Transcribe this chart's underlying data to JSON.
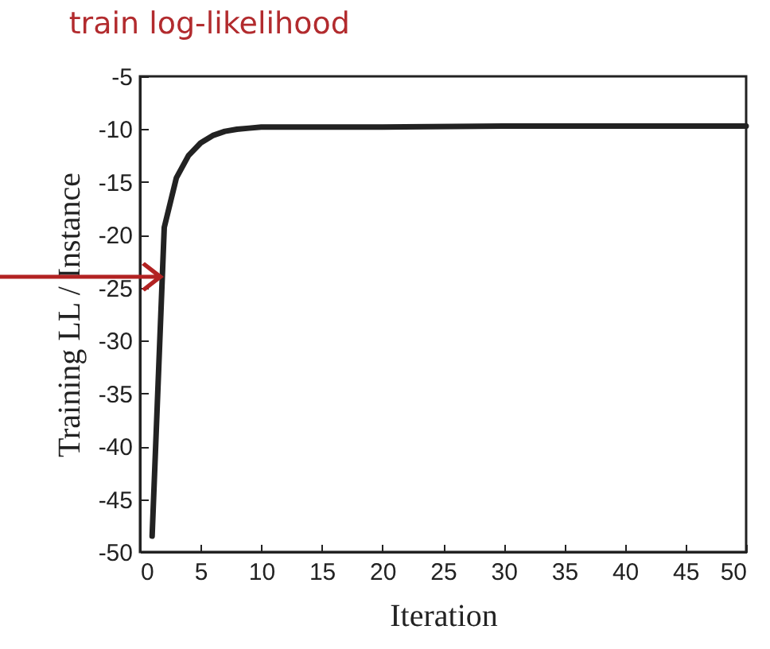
{
  "chart_data": {
    "type": "line",
    "title": "train log-likelihood",
    "xlabel": "Iteration",
    "ylabel": "Training LL / Instance",
    "x": [
      1,
      2,
      3,
      4,
      5,
      6,
      7,
      8,
      9,
      10,
      12,
      15,
      20,
      30,
      40,
      50
    ],
    "series": [
      {
        "color": "#222222",
        "values": [
          -48.5,
          -19.3,
          -14.6,
          -12.5,
          -11.3,
          -10.6,
          -10.2,
          -10.0,
          -9.9,
          -9.8,
          -9.8,
          -9.8,
          -9.8,
          -9.7,
          -9.7,
          -9.7
        ]
      }
    ],
    "xlim": [
      0,
      50
    ],
    "xticks": [
      0,
      5,
      10,
      15,
      20,
      25,
      30,
      35,
      40,
      45,
      50
    ],
    "ylim": [
      -50,
      -5
    ],
    "yticks": [
      -50,
      -45,
      -40,
      -35,
      -30,
      -25,
      -20,
      -15,
      -10,
      -5
    ],
    "marker": "none",
    "line_style": "solid",
    "grid": false,
    "legend": false
  }
}
